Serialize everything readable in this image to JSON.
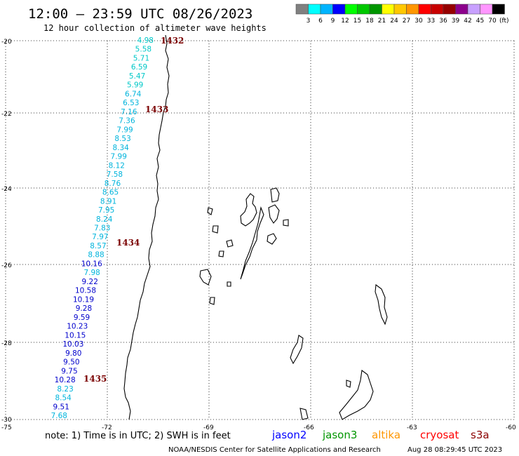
{
  "title": "12:00 – 23:59 UTC 08/26/2023",
  "subtitle": "12 hour collection of altimeter wave heights",
  "legend": {
    "colors": [
      "#808080",
      "#00ffff",
      "#00b4ff",
      "#0000ff",
      "#00ff00",
      "#00c800",
      "#009600",
      "#ffff00",
      "#ffc800",
      "#ff9600",
      "#ff0000",
      "#c80000",
      "#960000",
      "#8c008c",
      "#c8a0ff",
      "#ff96ff",
      "#000000"
    ],
    "labels": [
      "3",
      "6",
      "9",
      "12",
      "15",
      "18",
      "21",
      "24",
      "27",
      "30",
      "33",
      "36",
      "39",
      "42",
      "45",
      "70"
    ],
    "unit": "(ft)"
  },
  "axes": {
    "lat_labels": [
      "-20",
      "-22",
      "-24",
      "-26",
      "-28",
      "-30"
    ],
    "lon_labels": [
      "-75",
      "-72",
      "-69",
      "-66",
      "-63",
      "-60"
    ]
  },
  "passes": [
    "1432",
    "1433",
    "1434",
    "1435"
  ],
  "wave_heights": [
    {
      "v": "4.98",
      "c": "#00c8c8"
    },
    {
      "v": "5.58",
      "c": "#00c8c8"
    },
    {
      "v": "5.71",
      "c": "#00c8c8"
    },
    {
      "v": "6.59",
      "c": "#00c8c8"
    },
    {
      "v": "5.47",
      "c": "#00c8c8"
    },
    {
      "v": "5.99",
      "c": "#00c8c8"
    },
    {
      "v": "6.74",
      "c": "#00b4dc"
    },
    {
      "v": "6.53",
      "c": "#00b4dc"
    },
    {
      "v": "7.16",
      "c": "#00b4dc"
    },
    {
      "v": "7.36",
      "c": "#00b4dc"
    },
    {
      "v": "7.99",
      "c": "#00b4dc"
    },
    {
      "v": "8.53",
      "c": "#00b4dc"
    },
    {
      "v": "8.34",
      "c": "#00b4dc"
    },
    {
      "v": "7.99",
      "c": "#00b4dc"
    },
    {
      "v": "8.12",
      "c": "#00b4dc"
    },
    {
      "v": "7.58",
      "c": "#00b4dc"
    },
    {
      "v": "8.76",
      "c": "#00b4dc"
    },
    {
      "v": "8.65",
      "c": "#00b4dc"
    },
    {
      "v": "8.91",
      "c": "#00b4dc"
    },
    {
      "v": "7.95",
      "c": "#00b4dc"
    },
    {
      "v": "8.24",
      "c": "#00b4dc"
    },
    {
      "v": "7.83",
      "c": "#00b4dc"
    },
    {
      "v": "7.97",
      "c": "#00b4dc"
    },
    {
      "v": "8.57",
      "c": "#00b4dc"
    },
    {
      "v": "8.88",
      "c": "#00b4dc"
    },
    {
      "v": "10.16",
      "c": "#0000cc"
    },
    {
      "v": "7.98",
      "c": "#00b4dc"
    },
    {
      "v": "9.22",
      "c": "#0000cc"
    },
    {
      "v": "10.58",
      "c": "#0000cc"
    },
    {
      "v": "10.19",
      "c": "#0000cc"
    },
    {
      "v": "9.28",
      "c": "#0000cc"
    },
    {
      "v": "9.59",
      "c": "#0000cc"
    },
    {
      "v": "10.23",
      "c": "#0000cc"
    },
    {
      "v": "10.15",
      "c": "#0000cc"
    },
    {
      "v": "10.03",
      "c": "#0000cc"
    },
    {
      "v": "9.80",
      "c": "#0000cc"
    },
    {
      "v": "9.50",
      "c": "#0000cc"
    },
    {
      "v": "9.75",
      "c": "#0000cc"
    },
    {
      "v": "10.28",
      "c": "#0000cc"
    },
    {
      "v": "8.23",
      "c": "#00b4dc"
    },
    {
      "v": "8.54",
      "c": "#00b4dc"
    },
    {
      "v": "9.51",
      "c": "#0000cc"
    },
    {
      "v": "7.68",
      "c": "#00b4dc"
    }
  ],
  "footer": {
    "note": "note:  1) Time is in UTC;  2) SWH is in feet",
    "missions": [
      {
        "name": "jason2",
        "color": "#0000ff"
      },
      {
        "name": "jason3",
        "color": "#009600"
      },
      {
        "name": "altika",
        "color": "#ff9600"
      },
      {
        "name": "cryosat",
        "color": "#ff0000"
      },
      {
        "name": "s3a",
        "color": "#8b0000"
      }
    ],
    "credit": "NOAA/NESDIS Center for Satellite Applications and Research",
    "timestamp": "Aug 28 08:29:45 UTC 2023"
  }
}
